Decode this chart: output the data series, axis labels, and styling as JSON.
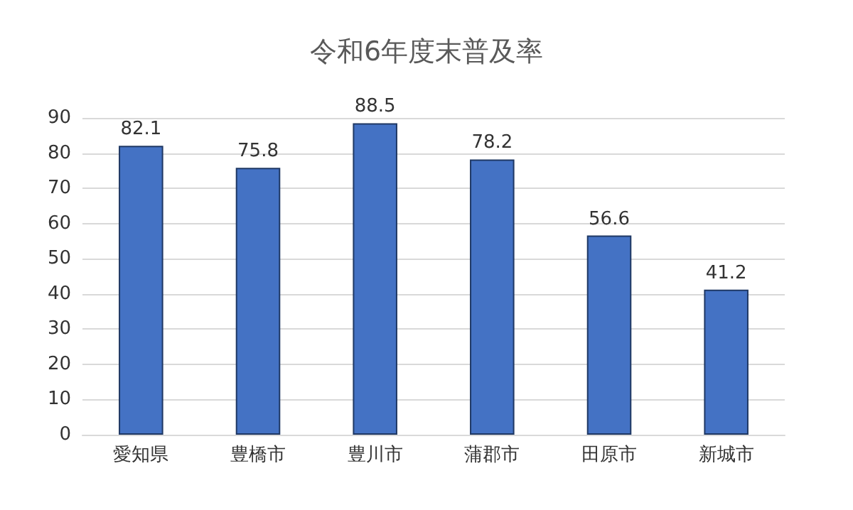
{
  "chart_data": {
    "type": "bar",
    "title": "令和6年度末普及率",
    "categories": [
      "愛知県",
      "豊橋市",
      "豊川市",
      "蒲郡市",
      "田原市",
      "新城市"
    ],
    "values": [
      82.1,
      75.8,
      88.5,
      78.2,
      56.6,
      41.2
    ],
    "color": "#4472c4",
    "ylim": [
      0,
      90
    ],
    "yticks": [
      0,
      10,
      20,
      30,
      40,
      50,
      60,
      70,
      80,
      90
    ],
    "grid": "y",
    "data_labels": true
  }
}
